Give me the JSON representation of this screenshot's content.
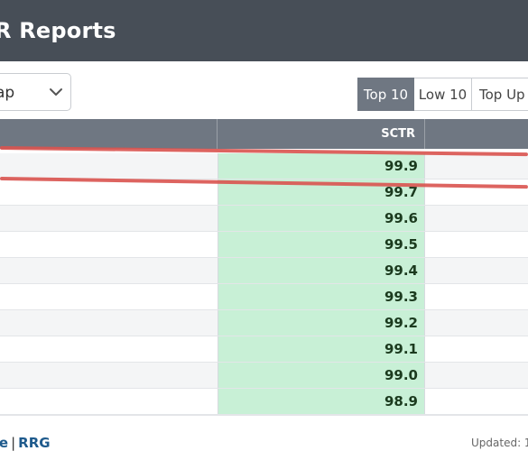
{
  "header": {
    "title": "R Reports"
  },
  "filter": {
    "selected": "ap"
  },
  "toggle_buttons": [
    {
      "label": "Top 10",
      "active": true
    },
    {
      "label": "Low 10",
      "active": false
    },
    {
      "label": "Top Up",
      "active": false
    }
  ],
  "table": {
    "columns": {
      "sctr": "SCTR"
    },
    "rows": [
      {
        "sctr": "99.9"
      },
      {
        "sctr": "99.7"
      },
      {
        "sctr": "99.6"
      },
      {
        "sctr": "99.5"
      },
      {
        "sctr": "99.4"
      },
      {
        "sctr": "99.3"
      },
      {
        "sctr": "99.2"
      },
      {
        "sctr": "99.1"
      },
      {
        "sctr": "99.0"
      },
      {
        "sctr": "98.9"
      }
    ]
  },
  "footer": {
    "link_1": "ce",
    "separator": "|",
    "link_2": "RRG",
    "updated": "Updated: 1"
  },
  "colors": {
    "header_bg": "#474e57",
    "table_header_bg": "#6f7782",
    "sctr_cell_bg": "#c8f0d6",
    "highlight": "#d9534f",
    "link": "#1e5a8c"
  }
}
